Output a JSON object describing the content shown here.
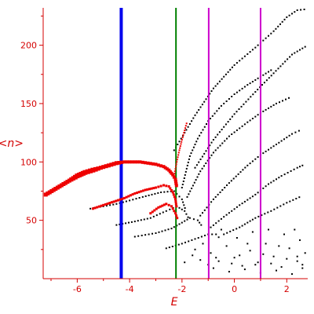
{
  "chart_data": {
    "type": "scatter",
    "title": "",
    "xlabel": "E",
    "ylabel": "<n>",
    "xlim": [
      -7.3,
      2.8
    ],
    "ylim": [
      0,
      232
    ],
    "xticks": [
      -6,
      -4,
      -2,
      0,
      2
    ],
    "yticks": [
      50,
      100,
      150,
      200
    ],
    "grid": false,
    "colors": {
      "axes": "#d40000",
      "highlight": "#ee0000",
      "points": "#000000"
    },
    "vertical_lines": [
      {
        "x": -4.32,
        "color": "#0000ee",
        "weight": "thick"
      },
      {
        "x": -2.23,
        "color": "#008000",
        "weight": "normal"
      },
      {
        "x": -0.98,
        "color": "#cc00cc",
        "weight": "normal"
      },
      {
        "x": 1.0,
        "color": "#cc00cc",
        "weight": "normal"
      }
    ],
    "highlighted_curves": [
      {
        "color": "#ee0000",
        "points": [
          [
            -7.2,
            72
          ],
          [
            -6.9,
            76
          ],
          [
            -6.6,
            80
          ],
          [
            -6.3,
            84
          ],
          [
            -6.0,
            88
          ],
          [
            -5.7,
            91
          ],
          [
            -5.4,
            93
          ],
          [
            -5.1,
            95
          ],
          [
            -4.8,
            97
          ],
          [
            -4.5,
            99
          ],
          [
            -4.2,
            100
          ],
          [
            -3.9,
            100
          ],
          [
            -3.6,
            100
          ],
          [
            -3.3,
            99
          ],
          [
            -3.0,
            98
          ],
          [
            -2.7,
            96
          ],
          [
            -2.5,
            93
          ],
          [
            -2.35,
            89
          ],
          [
            -2.25,
            85
          ],
          [
            -2.2,
            78
          ]
        ],
        "sizes": [
          5,
          5,
          5,
          5,
          6,
          6,
          6,
          5,
          5,
          5,
          4,
          4,
          4,
          4,
          4,
          4,
          4,
          4,
          4,
          4
        ]
      },
      {
        "color": "#ee0000",
        "points": [
          [
            -5.4,
            60
          ],
          [
            -5.0,
            63
          ],
          [
            -4.6,
            66
          ],
          [
            -4.2,
            69
          ],
          [
            -3.8,
            73
          ],
          [
            -3.4,
            76
          ],
          [
            -3.0,
            78
          ],
          [
            -2.7,
            80
          ],
          [
            -2.5,
            79
          ],
          [
            -2.35,
            74
          ],
          [
            -2.25,
            68
          ],
          [
            -2.2,
            60
          ]
        ],
        "sizes": [
          3,
          3,
          3,
          3,
          3,
          3,
          3,
          3,
          3,
          3,
          3,
          3
        ]
      },
      {
        "color": "#ee0000",
        "points": [
          [
            -3.2,
            56
          ],
          [
            -2.9,
            61
          ],
          [
            -2.6,
            64
          ],
          [
            -2.4,
            62
          ],
          [
            -2.25,
            56
          ],
          [
            -2.15,
            50
          ]
        ],
        "sizes": [
          3,
          3,
          3,
          3,
          3,
          3
        ]
      },
      {
        "color": "#ee0000",
        "points": [
          [
            -2.3,
            88
          ],
          [
            -2.2,
            100
          ],
          [
            -2.1,
            110
          ],
          [
            -2.0,
            119
          ],
          [
            -1.9,
            127
          ],
          [
            -1.8,
            135
          ]
        ],
        "sizes": [
          2,
          2,
          2,
          2,
          2,
          2
        ]
      }
    ],
    "series": [
      {
        "points": [
          [
            -5.5,
            60
          ],
          [
            -4.5,
            64
          ],
          [
            -3.5,
            70
          ],
          [
            -2.8,
            74
          ],
          [
            -2.3,
            75
          ],
          [
            -2.0,
            68
          ],
          [
            -1.85,
            58
          ]
        ]
      },
      {
        "points": [
          [
            -4.5,
            46
          ],
          [
            -3.8,
            49
          ],
          [
            -3.2,
            52
          ],
          [
            -2.6,
            58
          ],
          [
            -2.2,
            62
          ],
          [
            -1.9,
            58
          ],
          [
            -1.7,
            50
          ]
        ]
      },
      {
        "points": [
          [
            -3.8,
            36
          ],
          [
            -3.0,
            39
          ],
          [
            -2.4,
            43
          ],
          [
            -2.0,
            48
          ],
          [
            -1.7,
            52
          ],
          [
            -1.4,
            50
          ],
          [
            -1.2,
            44
          ]
        ]
      },
      {
        "points": [
          [
            -2.6,
            26
          ],
          [
            -2.0,
            30
          ],
          [
            -1.5,
            34
          ],
          [
            -1.0,
            38
          ],
          [
            -0.7,
            38
          ],
          [
            -0.5,
            33
          ]
        ]
      },
      {
        "points": [
          [
            -2.0,
            78
          ],
          [
            -1.7,
            105
          ],
          [
            -1.4,
            120
          ],
          [
            -1.0,
            135
          ],
          [
            -0.5,
            148
          ],
          [
            0.0,
            158
          ],
          [
            0.5,
            166
          ],
          [
            1.0,
            173
          ],
          [
            1.5,
            180
          ]
        ]
      },
      {
        "points": [
          [
            -1.8,
            70
          ],
          [
            -1.3,
            92
          ],
          [
            -0.8,
            108
          ],
          [
            -0.2,
            122
          ],
          [
            0.5,
            134
          ],
          [
            1.0,
            142
          ],
          [
            1.6,
            150
          ],
          [
            2.2,
            156
          ]
        ]
      },
      {
        "points": [
          [
            -1.3,
            54
          ],
          [
            -0.8,
            68
          ],
          [
            -0.2,
            82
          ],
          [
            0.5,
            97
          ],
          [
            1.0,
            106
          ],
          [
            1.6,
            115
          ],
          [
            2.2,
            124
          ],
          [
            2.6,
            128
          ]
        ]
      },
      {
        "points": [
          [
            -0.9,
            44
          ],
          [
            -0.4,
            53
          ],
          [
            0.2,
            63
          ],
          [
            0.8,
            72
          ],
          [
            1.3,
            81
          ],
          [
            1.8,
            88
          ],
          [
            2.4,
            95
          ],
          [
            2.7,
            98
          ]
        ]
      },
      {
        "points": [
          [
            -0.4,
            38
          ],
          [
            0.2,
            44
          ],
          [
            0.8,
            52
          ],
          [
            1.4,
            58
          ],
          [
            2.0,
            65
          ],
          [
            2.6,
            71
          ]
        ]
      },
      {
        "points": [
          [
            -2.3,
            110
          ],
          [
            -1.5,
            140
          ],
          [
            -0.8,
            163
          ],
          [
            0.0,
            183
          ],
          [
            0.8,
            198
          ],
          [
            1.5,
            212
          ],
          [
            2.0,
            224
          ],
          [
            2.4,
            230
          ],
          [
            2.8,
            231
          ]
        ]
      },
      {
        "points": [
          [
            -1.5,
            95
          ],
          [
            -0.8,
            119
          ],
          [
            0.0,
            141
          ],
          [
            0.8,
            160
          ],
          [
            1.5,
            176
          ],
          [
            2.2,
            192
          ],
          [
            2.8,
            200
          ]
        ]
      }
    ],
    "scattered_points": [
      [
        -1.2,
        30
      ],
      [
        -0.9,
        22
      ],
      [
        -0.6,
        15
      ],
      [
        -0.3,
        28
      ],
      [
        0.0,
        18
      ],
      [
        0.3,
        11
      ],
      [
        0.6,
        24
      ],
      [
        0.9,
        14
      ],
      [
        1.2,
        30
      ],
      [
        1.5,
        19
      ],
      [
        1.8,
        10
      ],
      [
        2.1,
        26
      ],
      [
        2.4,
        15
      ],
      [
        2.7,
        22
      ],
      [
        -0.8,
        9
      ],
      [
        -0.2,
        6
      ],
      [
        0.4,
        8
      ],
      [
        1.0,
        5
      ],
      [
        1.6,
        7
      ],
      [
        2.2,
        4
      ],
      [
        2.6,
        9
      ],
      [
        -1.5,
        25
      ],
      [
        -1.0,
        12
      ],
      [
        0.1,
        35
      ],
      [
        0.7,
        40
      ],
      [
        1.3,
        42
      ],
      [
        1.9,
        38
      ],
      [
        2.5,
        33
      ],
      [
        -0.5,
        42
      ],
      [
        0.5,
        30
      ],
      [
        1.1,
        21
      ],
      [
        1.7,
        28
      ],
      [
        2.3,
        42
      ],
      [
        2.0,
        17
      ],
      [
        2.6,
        12
      ],
      [
        -0.1,
        13
      ],
      [
        0.2,
        20
      ],
      [
        0.8,
        12
      ],
      [
        1.4,
        13
      ],
      [
        2.4,
        19
      ],
      [
        -0.7,
        18
      ],
      [
        -1.3,
        16
      ],
      [
        -1.6,
        20
      ],
      [
        -1.9,
        14
      ]
    ]
  }
}
